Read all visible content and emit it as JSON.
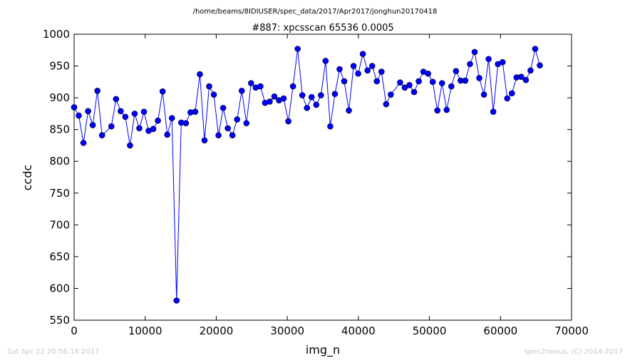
{
  "path_title": "/home/beams/8IDIUSER/spec_data/2017/Apr2017/jonghun20170418",
  "footer": {
    "timestamp": "Sat Apr 22 20:56:18 2017",
    "credit": "spec2nexus, (C) 2014-2017"
  },
  "chart_data": {
    "type": "line",
    "title": "#887: xpcsscan 65536 0.0005",
    "xlabel": "img_n",
    "ylabel": "ccdc",
    "xlim": [
      0,
      70000
    ],
    "ylim": [
      550,
      1000
    ],
    "xticks": [
      0,
      10000,
      20000,
      30000,
      40000,
      50000,
      60000,
      70000
    ],
    "yticks": [
      550,
      600,
      650,
      700,
      750,
      800,
      850,
      900,
      950,
      1000
    ],
    "grid": false,
    "marker": "circle",
    "line_color": "#0000ff",
    "marker_color": "#0000ff",
    "series": [
      {
        "x": [
          0,
          655,
          1311,
          1966,
          2621,
          3277,
          3932,
          5243,
          5898,
          6554,
          7209,
          7864,
          8520,
          9175,
          9830,
          10486,
          11141,
          11796,
          12452,
          13107,
          13763,
          14418,
          15073,
          15729,
          16384,
          17039,
          17695,
          18350,
          19005,
          19661,
          20316,
          20972,
          21627,
          22282,
          22938,
          23593,
          24248,
          24904,
          25559,
          26214,
          26870,
          27525,
          28180,
          28836,
          29491,
          30147,
          30802,
          31457,
          32113,
          32768,
          33423,
          34079,
          34734,
          35389,
          36045,
          36700,
          37356,
          38011,
          38666,
          39322,
          39977,
          40632,
          41288,
          41943,
          42598,
          43254,
          43909,
          44564,
          45875,
          46531,
          47186,
          47841,
          48497,
          49152,
          49807,
          50463,
          51118,
          51773,
          52429,
          53084,
          53740,
          54395,
          55050,
          55706,
          56361,
          57016,
          57672,
          58327,
          58982,
          59638,
          60293,
          60948,
          61604,
          62259,
          62915,
          63570,
          64225,
          64881,
          65536
        ],
        "y": [
          885,
          872,
          829,
          879,
          857,
          911,
          841,
          855,
          898,
          879,
          870,
          825,
          875,
          852,
          878,
          848,
          851,
          864,
          910,
          842,
          868,
          581,
          861,
          860,
          877,
          878,
          937,
          833,
          918,
          905,
          841,
          884,
          852,
          841,
          866,
          911,
          860,
          923,
          916,
          918,
          892,
          894,
          902,
          896,
          899,
          863,
          918,
          977,
          904,
          884,
          901,
          889,
          904,
          958,
          855,
          906,
          945,
          926,
          880,
          950,
          938,
          969,
          943,
          950,
          926,
          941,
          890,
          905,
          924,
          916,
          920,
          909,
          926,
          941,
          938,
          925,
          880,
          923,
          881,
          918,
          942,
          927,
          927,
          953,
          972,
          931,
          905,
          961,
          878,
          953,
          956,
          899,
          907,
          932,
          933,
          928,
          943,
          977,
          951
        ]
      }
    ]
  }
}
